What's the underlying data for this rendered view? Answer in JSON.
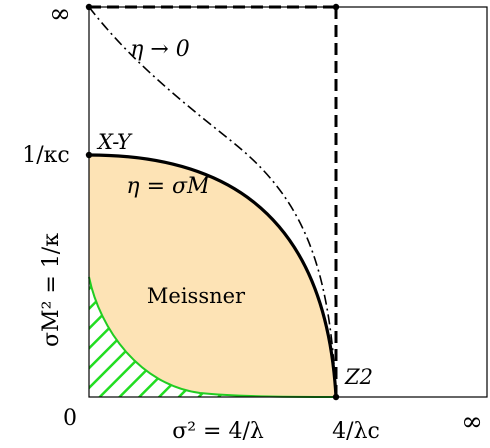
{
  "chart_data": {
    "type": "phase-diagram",
    "x_axis": {
      "label": "σ² = 4/λ",
      "ticks": [
        "0",
        "4/λc",
        "∞"
      ]
    },
    "y_axis": {
      "label": "σM² = 1/κ",
      "ticks": [
        "0",
        "1/κc",
        "∞"
      ]
    },
    "regions": [
      {
        "name": "Meissner",
        "label": "Meissner",
        "fill": "#fde3b5"
      },
      {
        "name": "hatched",
        "label": "",
        "hatch_color": "#22dd22"
      }
    ],
    "curves": [
      {
        "name": "eta-sigma-m",
        "label": "η = σM",
        "style": "solid-thick"
      },
      {
        "name": "eta-to-zero",
        "label": "η → 0",
        "style": "dash-dot"
      },
      {
        "name": "vertical-boundary",
        "label": "",
        "style": "dashed"
      },
      {
        "name": "top-boundary",
        "label": "",
        "style": "dashed"
      }
    ],
    "points": [
      {
        "name": "X-Y",
        "label": "X-Y"
      },
      {
        "name": "Z2",
        "label": "Z2"
      }
    ]
  }
}
